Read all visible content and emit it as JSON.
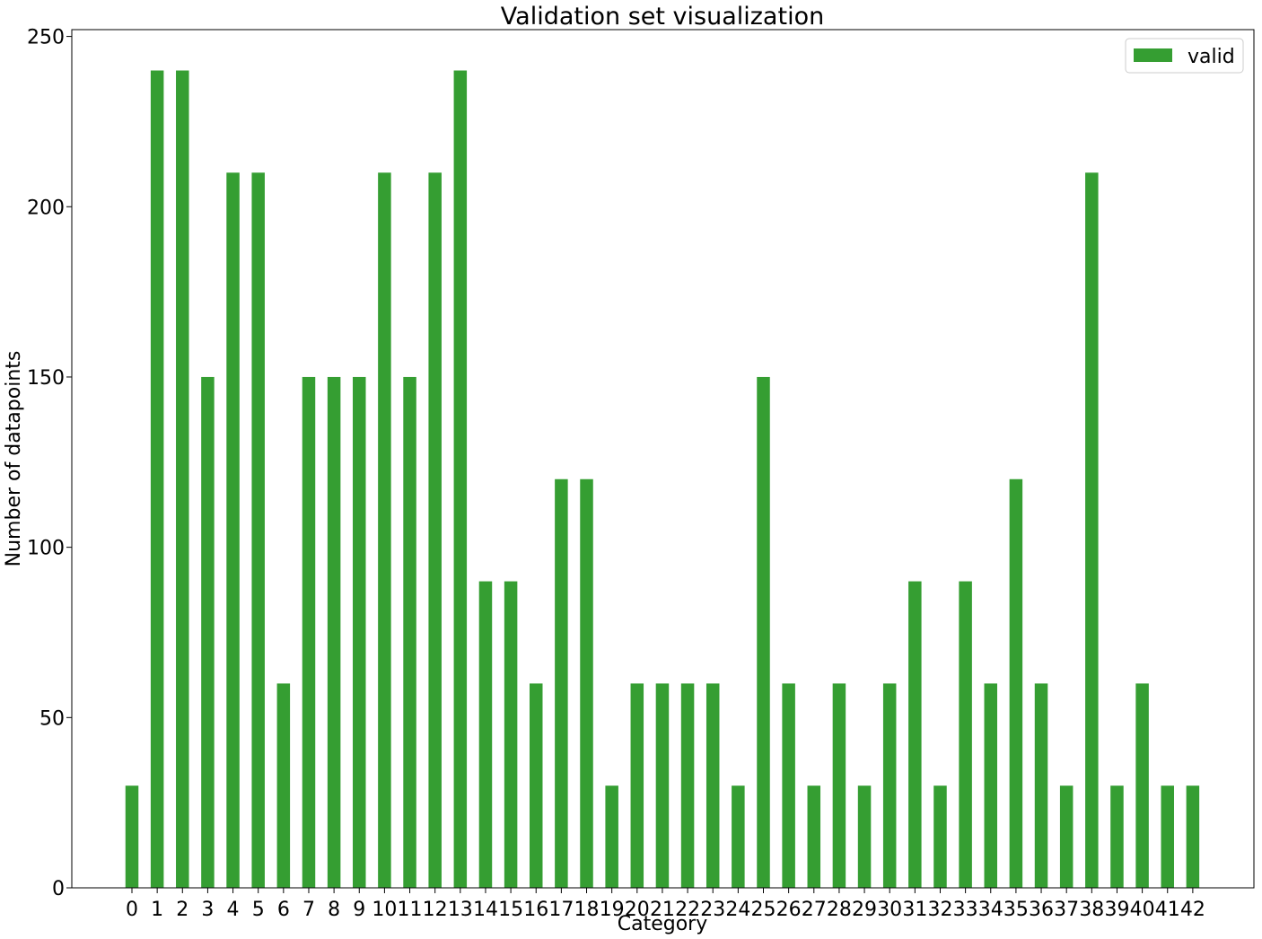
{
  "chart_data": {
    "type": "bar",
    "title": "Validation set visualization",
    "xlabel": "Category",
    "ylabel": "Number of datapoints",
    "ylim": [
      0,
      252
    ],
    "yticks": [
      0,
      50,
      100,
      150,
      200,
      250
    ],
    "grid": false,
    "legend_position": "top-right",
    "categories": [
      "0",
      "1",
      "2",
      "3",
      "4",
      "5",
      "6",
      "7",
      "8",
      "9",
      "10",
      "11",
      "12",
      "13",
      "14",
      "15",
      "16",
      "17",
      "18",
      "19",
      "20",
      "21",
      "22",
      "23",
      "24",
      "25",
      "26",
      "27",
      "28",
      "29",
      "30",
      "31",
      "32",
      "33",
      "34",
      "35",
      "36",
      "37",
      "38",
      "39",
      "40",
      "41",
      "42"
    ],
    "series": [
      {
        "name": "valid",
        "color": "#359e32",
        "values": [
          30,
          240,
          240,
          150,
          210,
          210,
          60,
          150,
          150,
          150,
          210,
          150,
          210,
          240,
          90,
          90,
          60,
          120,
          120,
          30,
          60,
          60,
          60,
          60,
          30,
          150,
          60,
          30,
          60,
          30,
          60,
          90,
          30,
          90,
          60,
          120,
          60,
          30,
          210,
          30,
          60,
          30,
          30
        ]
      }
    ]
  }
}
